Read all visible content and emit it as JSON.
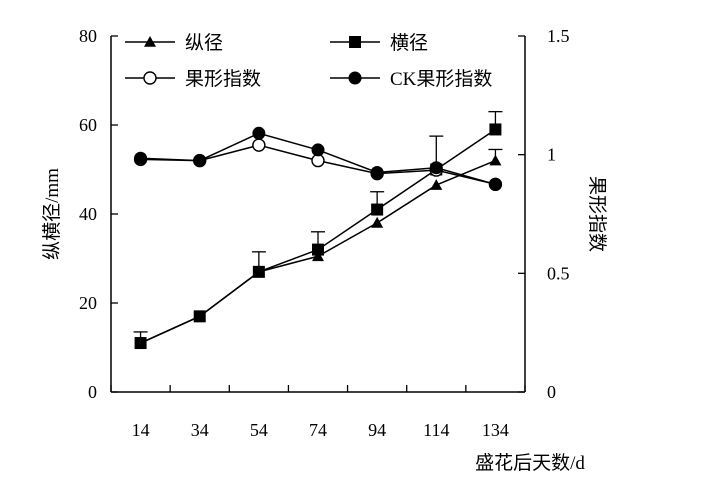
{
  "chart_data": {
    "type": "line",
    "xlabel": "盛花后天数/d",
    "ylabel_left": "纵横径/mm",
    "ylabel_right": "果形指数",
    "x": [
      14,
      34,
      54,
      74,
      94,
      114,
      134
    ],
    "x_tick_labels": [
      "14",
      "34",
      "54",
      "74",
      "94",
      "114",
      "134"
    ],
    "ylim_left": [
      0,
      80
    ],
    "yticks_left": [
      "0",
      "20",
      "40",
      "60",
      "80"
    ],
    "ylim_right": [
      0,
      1.5
    ],
    "yticks_right": [
      "0",
      "0.5",
      "1",
      "1.5"
    ],
    "grid": false,
    "legend_position": "top",
    "series": [
      {
        "name": "纵径",
        "axis": "left",
        "marker": "triangle-filled",
        "values": [
          11,
          17,
          27,
          30.5,
          38,
          46.5,
          52
        ],
        "error": [
          0,
          0,
          0,
          0,
          0,
          0,
          2.5
        ]
      },
      {
        "name": "横径",
        "axis": "left",
        "marker": "square-filled",
        "values": [
          11,
          17,
          27,
          32,
          41,
          50,
          59
        ],
        "error": [
          2.5,
          0,
          4.5,
          4,
          4,
          7.5,
          4
        ]
      },
      {
        "name": "果形指数",
        "axis": "right",
        "marker": "circle-open",
        "values": [
          0.98,
          0.975,
          1.04,
          0.975,
          0.92,
          0.935,
          0.875
        ],
        "error": [
          0,
          0,
          0,
          0,
          0,
          0,
          0
        ]
      },
      {
        "name": "CK果形指数",
        "axis": "right",
        "marker": "circle-filled",
        "values": [
          0.985,
          0.975,
          1.09,
          1.02,
          0.925,
          0.945,
          0.875
        ],
        "error": [
          0,
          0,
          0,
          0,
          0,
          0,
          0
        ]
      }
    ]
  }
}
